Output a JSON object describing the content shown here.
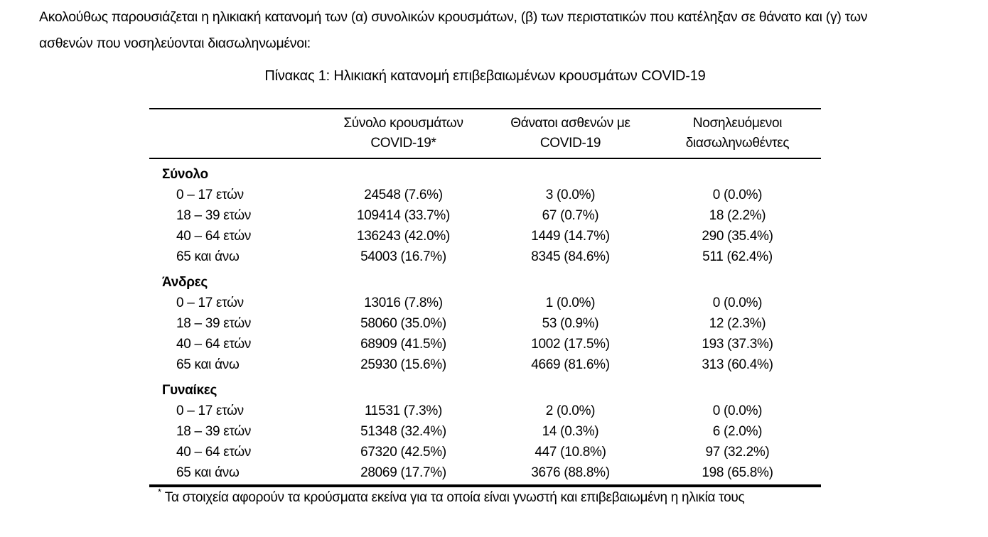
{
  "intro": {
    "line1": "Ακολούθως παρουσιάζεται η ηλικιακή κατανομή των (α) συνολικών κρουσμάτων, (β) των περιστατικών που κατέληξαν σε θάνατο και (γ) των",
    "line2": "ασθενών που νοσηλεύονται διασωληνωμένοι:"
  },
  "table": {
    "title": "Πίνακας 1: Ηλικιακή κατανομή επιβεβαιωμένων κρουσμάτων COVID-19",
    "header": {
      "age_column": "",
      "cases": {
        "line1": "Σύνολο κρουσμάτων",
        "line2": "COVID-19*"
      },
      "deaths": {
        "line1": "Θάνατοι ασθενών με",
        "line2": "COVID-19"
      },
      "intubated": {
        "line1": "Νοσηλευόμενοι",
        "line2": "διασωληνωθέντες"
      }
    },
    "sections": [
      {
        "label": "Σύνολο",
        "rows": [
          {
            "age": "0 – 17 ετών",
            "cases": "24548 (7.6%)",
            "deaths": "3 (0.0%)",
            "intubated": "0 (0.0%)"
          },
          {
            "age": "18 – 39 ετών",
            "cases": "109414 (33.7%)",
            "deaths": "67 (0.7%)",
            "intubated": "18 (2.2%)"
          },
          {
            "age": "40 – 64 ετών",
            "cases": "136243 (42.0%)",
            "deaths": "1449 (14.7%)",
            "intubated": "290 (35.4%)"
          },
          {
            "age": "65 και άνω",
            "cases": "54003 (16.7%)",
            "deaths": "8345 (84.6%)",
            "intubated": "511 (62.4%)"
          }
        ]
      },
      {
        "label": "Άνδρες",
        "rows": [
          {
            "age": "0 – 17 ετών",
            "cases": "13016 (7.8%)",
            "deaths": "1 (0.0%)",
            "intubated": "0 (0.0%)"
          },
          {
            "age": "18 – 39 ετών",
            "cases": "58060 (35.0%)",
            "deaths": "53 (0.9%)",
            "intubated": "12 (2.3%)"
          },
          {
            "age": "40 – 64 ετών",
            "cases": "68909 (41.5%)",
            "deaths": "1002 (17.5%)",
            "intubated": "193 (37.3%)"
          },
          {
            "age": "65 και άνω",
            "cases": "25930 (15.6%)",
            "deaths": "4669 (81.6%)",
            "intubated": "313 (60.4%)"
          }
        ]
      },
      {
        "label": "Γυναίκες",
        "rows": [
          {
            "age": "0 – 17 ετών",
            "cases": "11531 (7.3%)",
            "deaths": "2 (0.0%)",
            "intubated": "0 (0.0%)"
          },
          {
            "age": "18 – 39 ετών",
            "cases": "51348 (32.4%)",
            "deaths": "14 (0.3%)",
            "intubated": "6 (2.0%)"
          },
          {
            "age": "40 – 64 ετών",
            "cases": "67320 (42.5%)",
            "deaths": "447 (10.8%)",
            "intubated": "97 (32.2%)"
          },
          {
            "age": "65 και άνω",
            "cases": "28069 (17.7%)",
            "deaths": "3676 (88.8%)",
            "intubated": "198 (65.8%)"
          }
        ]
      }
    ]
  },
  "footnote": {
    "marker": "*",
    "text": "Τα στοιχεία αφορούν τα κρούσματα εκείνα για τα οποία είναι γνωστή και επιβεβαιωμένη η ηλικία τους"
  },
  "colors": {
    "background": "#ffffff",
    "text": "#000000",
    "rule": "#000000"
  }
}
